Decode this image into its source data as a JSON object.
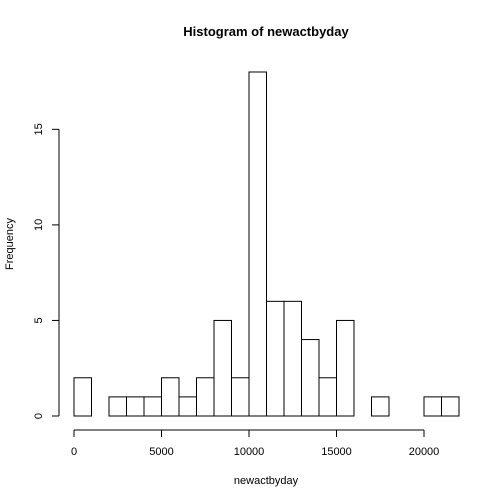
{
  "chart_data": {
    "type": "bar",
    "title": "Histogram of newactbyday",
    "xlabel": "newactbyday",
    "ylabel": "Frequency",
    "bin_width": 1000,
    "bin_edges": [
      0,
      1000,
      2000,
      3000,
      4000,
      5000,
      6000,
      7000,
      8000,
      9000,
      10000,
      11000,
      12000,
      13000,
      14000,
      15000,
      16000,
      17000,
      18000,
      19000,
      20000,
      21000,
      22000
    ],
    "values": [
      2,
      0,
      1,
      1,
      1,
      2,
      1,
      2,
      5,
      2,
      18,
      6,
      6,
      4,
      2,
      5,
      0,
      1,
      0,
      0,
      1,
      1
    ],
    "xlim": [
      0,
      22000
    ],
    "ylim": [
      0,
      18
    ],
    "x_ticks": [
      0,
      5000,
      10000,
      15000,
      20000
    ],
    "y_ticks": [
      0,
      5,
      10,
      15
    ],
    "grid": false
  }
}
